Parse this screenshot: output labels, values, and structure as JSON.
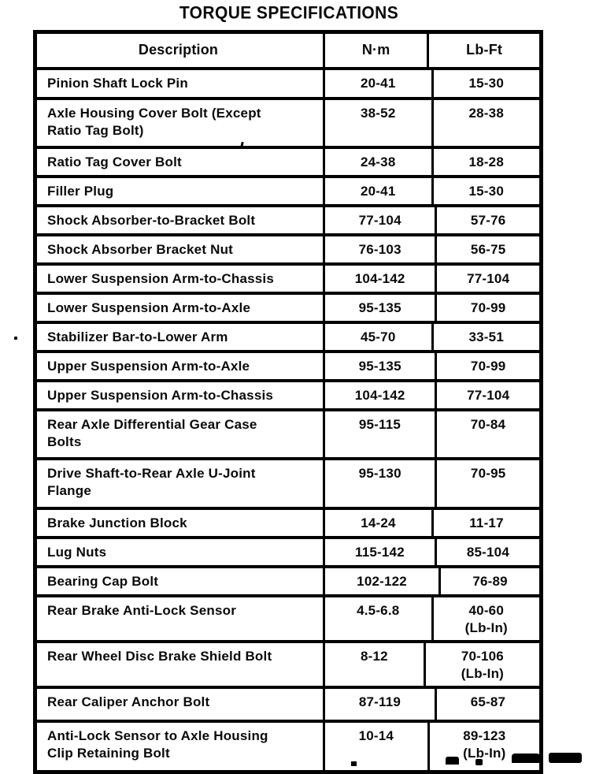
{
  "page": {
    "title": "TORQUE SPECIFICATIONS"
  },
  "table": {
    "headers": [
      "Description",
      "N·m",
      "Lb-Ft"
    ],
    "rows": [
      {
        "description": "Pinion Shaft Lock Pin",
        "nm": "20-41",
        "lbft": "15-30"
      },
      {
        "description": "Axle Housing Cover Bolt (Except\nRatio Tag Bolt)",
        "nm": "38-52",
        "lbft": "28-38"
      },
      {
        "description": "Ratio Tag Cover Bolt",
        "nm": "24-38",
        "lbft": "18-28"
      },
      {
        "description": "Filler Plug",
        "nm": "20-41",
        "lbft": "15-30"
      },
      {
        "description": "Shock Absorber-to-Bracket Bolt",
        "nm": "77-104",
        "lbft": "57-76"
      },
      {
        "description": "Shock Absorber Bracket Nut",
        "nm": "76-103",
        "lbft": "56-75"
      },
      {
        "description": "Lower Suspension Arm-to-Chassis",
        "nm": "104-142",
        "lbft": "77-104"
      },
      {
        "description": "Lower Suspension Arm-to-Axle",
        "nm": "95-135",
        "lbft": "70-99"
      },
      {
        "description": "Stabilizer Bar-to-Lower Arm",
        "nm": "45-70",
        "lbft": "33-51"
      },
      {
        "description": "Upper Suspension Arm-to-Axle",
        "nm": "95-135",
        "lbft": "70-99"
      },
      {
        "description": "Upper Suspension Arm-to-Chassis",
        "nm": "104-142",
        "lbft": "77-104"
      },
      {
        "description": "Rear Axle Differential Gear Case\nBolts",
        "nm": "95-115",
        "lbft": "70-84"
      },
      {
        "description": "Drive Shaft-to-Rear Axle U-Joint\nFlange",
        "nm": "95-130",
        "lbft": "70-95"
      },
      {
        "description": "Brake Junction Block",
        "nm": "14-24",
        "lbft": "11-17"
      },
      {
        "description": "Lug Nuts",
        "nm": "115-142",
        "lbft": "85-104"
      },
      {
        "description": "Bearing Cap Bolt",
        "nm": "102-122",
        "lbft": "76-89"
      },
      {
        "description": "Rear Brake Anti-Lock Sensor",
        "nm": "4.5-6.8",
        "lbft": "40-60",
        "lbft_note": "(Lb-In)"
      },
      {
        "description": "Rear Wheel Disc Brake Shield Bolt",
        "nm": "8-12",
        "lbft": "70-106",
        "lbft_note": "(Lb-In)"
      },
      {
        "description": "Rear Caliper Anchor Bolt",
        "nm": "87-119",
        "lbft": "65-87"
      },
      {
        "description": "Anti-Lock Sensor to Axle Housing\nClip Retaining Bolt",
        "nm": "10-14",
        "lbft": "89-123",
        "lbft_note": "(Lb-In)"
      }
    ]
  }
}
